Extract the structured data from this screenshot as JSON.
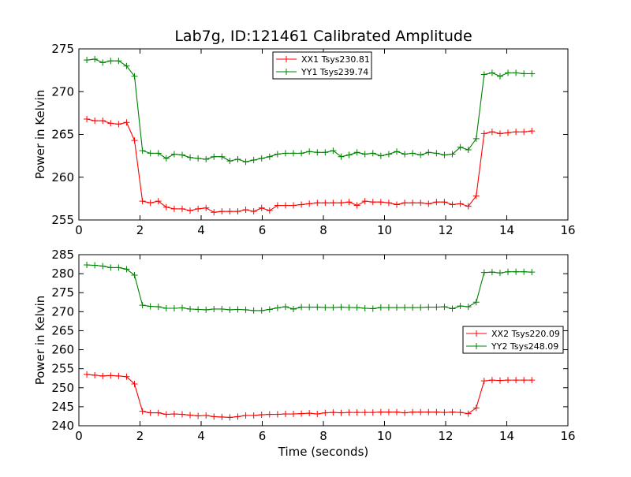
{
  "title": "Lab7g, ID:121461 Calibrated Amplitude",
  "colors": {
    "xx": "#ff0000",
    "yy": "#008000"
  },
  "chart_data": [
    {
      "type": "line",
      "xlabel": "",
      "ylabel": "Power in Kelvin",
      "xlim": [
        0,
        16
      ],
      "ylim": [
        255,
        275
      ],
      "xticks": [
        "0",
        "2",
        "4",
        "6",
        "8",
        "10",
        "12",
        "14",
        "16"
      ],
      "yticks": [
        "255",
        "260",
        "265",
        "270",
        "275"
      ],
      "legend_position": "top-center",
      "x": [
        0.26,
        0.52,
        0.78,
        1.04,
        1.3,
        1.56,
        1.82,
        2.08,
        2.34,
        2.6,
        2.86,
        3.12,
        3.38,
        3.64,
        3.9,
        4.16,
        4.42,
        4.68,
        4.94,
        5.2,
        5.46,
        5.72,
        5.98,
        6.24,
        6.5,
        6.76,
        7.02,
        7.28,
        7.54,
        7.8,
        8.06,
        8.32,
        8.58,
        8.84,
        9.1,
        9.36,
        9.62,
        9.88,
        10.14,
        10.4,
        10.66,
        10.92,
        11.18,
        11.44,
        11.7,
        11.96,
        12.22,
        12.48,
        12.74,
        13.0,
        13.26,
        13.52,
        13.78,
        14.04,
        14.3,
        14.56,
        14.82
      ],
      "series": [
        {
          "name": "XX1 Tsys230.81",
          "color": "#ff0000",
          "values": [
            266.8,
            266.6,
            266.6,
            266.3,
            266.2,
            266.4,
            264.3,
            257.2,
            257.0,
            257.2,
            256.5,
            256.3,
            256.3,
            256.1,
            256.3,
            256.4,
            255.9,
            256.0,
            256.0,
            256.0,
            256.2,
            256.0,
            256.4,
            256.1,
            256.7,
            256.7,
            256.7,
            256.8,
            256.9,
            257.0,
            257.0,
            257.0,
            257.0,
            257.1,
            256.7,
            257.2,
            257.1,
            257.1,
            257.0,
            256.8,
            257.0,
            257.0,
            257.0,
            256.9,
            257.1,
            257.1,
            256.8,
            256.9,
            256.6,
            257.8,
            265.1,
            265.3,
            265.1,
            265.2,
            265.3,
            265.3,
            265.4
          ]
        },
        {
          "name": "YY1 Tsys239.74",
          "color": "#008000",
          "values": [
            273.7,
            273.8,
            273.4,
            273.6,
            273.6,
            273.0,
            271.8,
            263.1,
            262.8,
            262.8,
            262.2,
            262.7,
            262.6,
            262.3,
            262.2,
            262.1,
            262.4,
            262.4,
            261.9,
            262.1,
            261.8,
            262.0,
            262.2,
            262.4,
            262.7,
            262.8,
            262.8,
            262.8,
            263.0,
            262.9,
            262.9,
            263.1,
            262.4,
            262.6,
            262.9,
            262.7,
            262.8,
            262.5,
            262.7,
            263.0,
            262.7,
            262.8,
            262.6,
            262.9,
            262.8,
            262.6,
            262.7,
            263.5,
            263.2,
            264.5,
            272.0,
            272.2,
            271.8,
            272.2,
            272.2,
            272.1,
            272.1
          ]
        }
      ]
    },
    {
      "type": "line",
      "xlabel": "Time (seconds)",
      "ylabel": "Power in Kelvin",
      "xlim": [
        0,
        16
      ],
      "ylim": [
        240,
        285
      ],
      "xticks": [
        "0",
        "2",
        "4",
        "6",
        "8",
        "10",
        "12",
        "14",
        "16"
      ],
      "yticks": [
        "240",
        "245",
        "250",
        "255",
        "260",
        "265",
        "270",
        "275",
        "280",
        "285"
      ],
      "legend_position": "center-right",
      "x": [
        0.26,
        0.52,
        0.78,
        1.04,
        1.3,
        1.56,
        1.82,
        2.08,
        2.34,
        2.6,
        2.86,
        3.12,
        3.38,
        3.64,
        3.9,
        4.16,
        4.42,
        4.68,
        4.94,
        5.2,
        5.46,
        5.72,
        5.98,
        6.24,
        6.5,
        6.76,
        7.02,
        7.28,
        7.54,
        7.8,
        8.06,
        8.32,
        8.58,
        8.84,
        9.1,
        9.36,
        9.62,
        9.88,
        10.14,
        10.4,
        10.66,
        10.92,
        11.18,
        11.44,
        11.7,
        11.96,
        12.22,
        12.48,
        12.74,
        13.0,
        13.26,
        13.52,
        13.78,
        14.04,
        14.3,
        14.56,
        14.82
      ],
      "series": [
        {
          "name": "XX2 Tsys220.09",
          "color": "#ff0000",
          "values": [
            253.5,
            253.3,
            253.1,
            253.2,
            253.1,
            252.9,
            251.0,
            243.8,
            243.4,
            243.4,
            243.0,
            243.1,
            243.0,
            242.8,
            242.6,
            242.7,
            242.4,
            242.3,
            242.2,
            242.4,
            242.7,
            242.7,
            242.9,
            243.0,
            243.0,
            243.1,
            243.1,
            243.2,
            243.3,
            243.1,
            243.4,
            243.5,
            243.4,
            243.5,
            243.5,
            243.5,
            243.5,
            243.6,
            243.6,
            243.6,
            243.4,
            243.6,
            243.6,
            243.6,
            243.6,
            243.5,
            243.6,
            243.5,
            243.2,
            244.7,
            251.8,
            252.0,
            251.9,
            252.0,
            252.0,
            252.0,
            252.0
          ]
        },
        {
          "name": "YY2 Tsys248.09",
          "color": "#008000",
          "values": [
            282.3,
            282.2,
            282.0,
            281.6,
            281.6,
            281.2,
            279.6,
            271.7,
            271.4,
            271.3,
            270.9,
            270.9,
            271.0,
            270.7,
            270.6,
            270.5,
            270.7,
            270.7,
            270.5,
            270.6,
            270.5,
            270.3,
            270.3,
            270.6,
            271.0,
            271.3,
            270.7,
            271.2,
            271.2,
            271.2,
            271.1,
            271.1,
            271.2,
            271.1,
            271.1,
            270.9,
            270.8,
            271.1,
            271.1,
            271.1,
            271.1,
            271.1,
            271.1,
            271.2,
            271.2,
            271.3,
            270.8,
            271.5,
            271.3,
            272.5,
            280.3,
            280.4,
            280.2,
            280.5,
            280.5,
            280.5,
            280.4
          ]
        }
      ]
    }
  ]
}
